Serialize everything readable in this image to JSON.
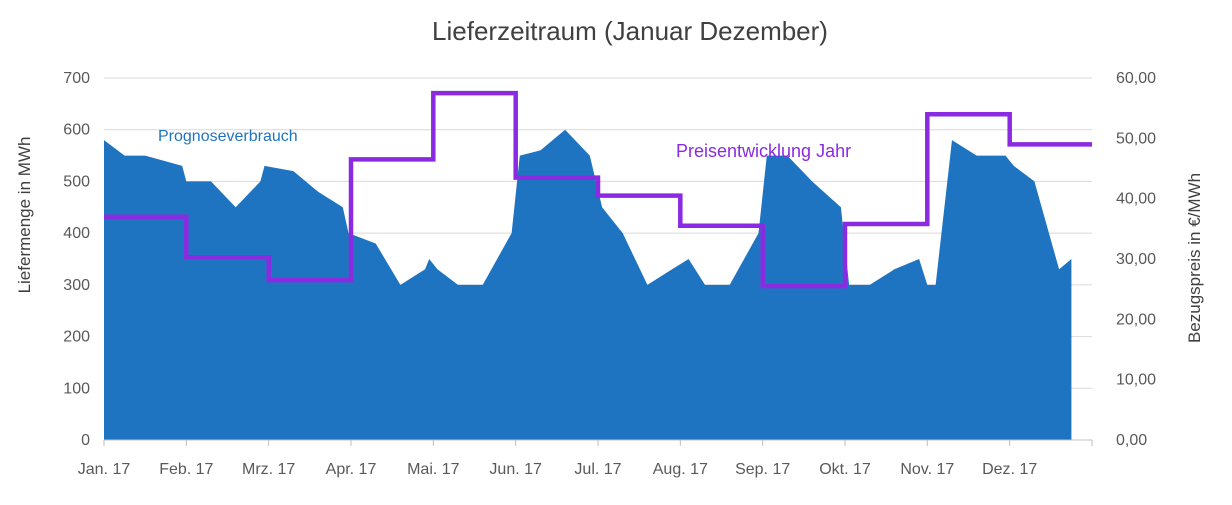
{
  "chart_data": {
    "type": "area",
    "title": "Lieferzeitraum (Januar Dezember)",
    "xlabel": "",
    "ylabel": "Liefermenge in MWh",
    "y2label": "Bezugspreis in €/MWh",
    "ylim": [
      0,
      700
    ],
    "y2lim": [
      0,
      60
    ],
    "yticks": [
      "0",
      "100",
      "200",
      "300",
      "400",
      "500",
      "600",
      "700"
    ],
    "y2ticks": [
      "0,00",
      "10,00",
      "20,00",
      "30,00",
      "40,00",
      "50,00",
      "60,00"
    ],
    "categories": [
      "Jan. 17",
      "Feb. 17",
      "Mrz. 17",
      "Apr. 17",
      "Mai. 17",
      "Jun. 17",
      "Jul. 17",
      "Aug. 17",
      "Sep. 17",
      "Okt. 17",
      "Nov. 17",
      "Dez. 17"
    ],
    "series": [
      {
        "name": "Prognoseverbrauch",
        "axis": "left",
        "color": "#1f74c1",
        "x": [
          0,
          0.25,
          0.5,
          0.95,
          1.0,
          1.3,
          1.6,
          1.9,
          1.95,
          2.3,
          2.6,
          2.9,
          2.97,
          3.3,
          3.6,
          3.9,
          3.95,
          4.05,
          4.3,
          4.6,
          4.95,
          5.05,
          5.3,
          5.6,
          5.9,
          6.05,
          6.3,
          6.6,
          6.9,
          7.1,
          7.3,
          7.6,
          7.95,
          8.05,
          8.3,
          8.6,
          8.95,
          9.05,
          9.3,
          9.6,
          9.9,
          10.0,
          10.1,
          10.3,
          10.6,
          10.95,
          11.05,
          11.3,
          11.6,
          11.75
        ],
        "values": [
          580,
          550,
          550,
          530,
          500,
          500,
          450,
          500,
          530,
          520,
          480,
          450,
          400,
          380,
          300,
          330,
          350,
          330,
          300,
          300,
          400,
          550,
          560,
          600,
          550,
          450,
          400,
          300,
          330,
          350,
          300,
          300,
          400,
          550,
          550,
          500,
          450,
          300,
          300,
          330,
          350,
          300,
          300,
          580,
          550,
          550,
          530,
          500,
          330,
          350
        ]
      },
      {
        "name": "Preisentwicklung Jahr",
        "axis": "right",
        "color": "#8a2be2",
        "type": "step",
        "values": [
          37,
          30.3,
          26.5,
          46.5,
          57.5,
          43.5,
          40.5,
          35.5,
          25.5,
          35.8,
          54,
          49
        ]
      }
    ],
    "annotations": [
      {
        "text": "Prognoseverbrauch",
        "series": 0
      },
      {
        "text": "Preisentwicklung Jahr",
        "series": 1
      }
    ],
    "grid": true,
    "legend": "none"
  }
}
